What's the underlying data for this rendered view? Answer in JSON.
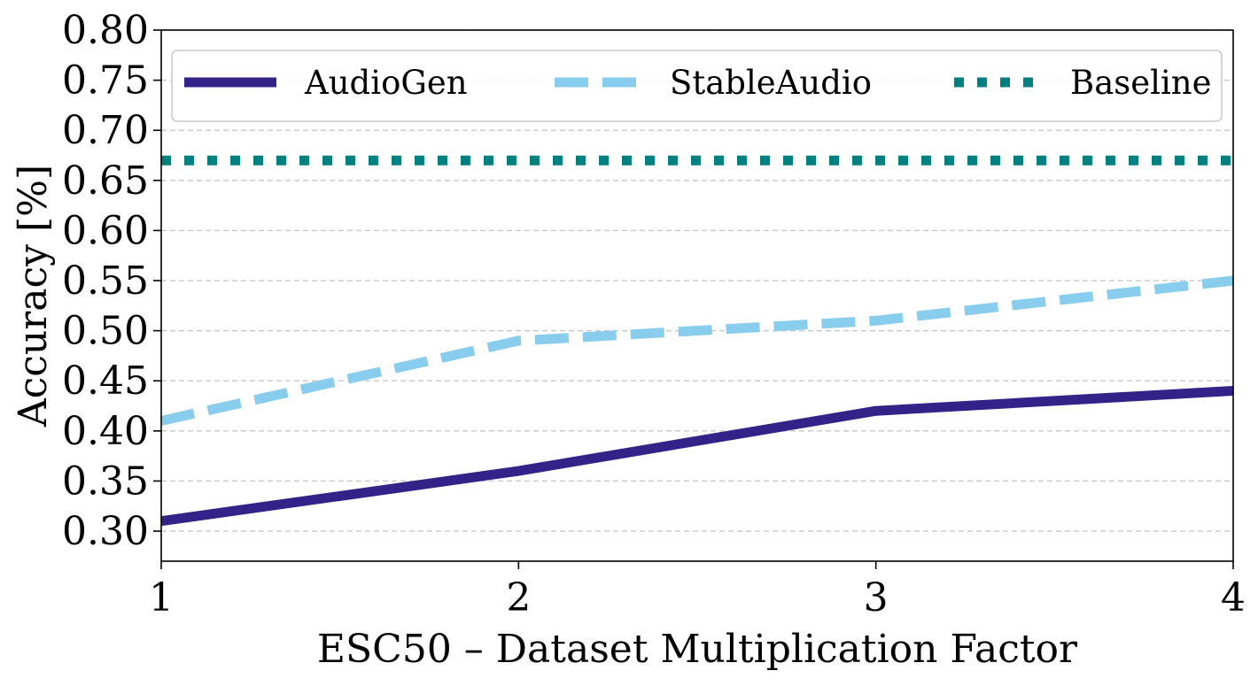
{
  "chart_data": {
    "type": "line",
    "title": "",
    "xlabel": "ESC50 – Dataset Multiplication Factor",
    "ylabel": "Accuracy [%]",
    "x": [
      1,
      2,
      3,
      4
    ],
    "xlim": [
      1,
      4
    ],
    "ylim": [
      0.27,
      0.8
    ],
    "xticks": [
      "1",
      "2",
      "3",
      "4"
    ],
    "yticks": [
      "0.30",
      "0.35",
      "0.40",
      "0.45",
      "0.50",
      "0.55",
      "0.60",
      "0.65",
      "0.70",
      "0.75",
      "0.80"
    ],
    "grid": "horizontal dashed",
    "legend_position": "top",
    "series": [
      {
        "name": "AudioGen",
        "style": "solid",
        "color": "#332288",
        "values": [
          0.31,
          0.36,
          0.42,
          0.44
        ]
      },
      {
        "name": "StableAudio",
        "style": "dashed",
        "color": "#88ccee",
        "values": [
          0.41,
          0.49,
          0.51,
          0.55
        ]
      },
      {
        "name": "Baseline",
        "style": "dotted",
        "color": "#00807f",
        "values": [
          0.67,
          0.67,
          0.67,
          0.67
        ]
      }
    ]
  }
}
